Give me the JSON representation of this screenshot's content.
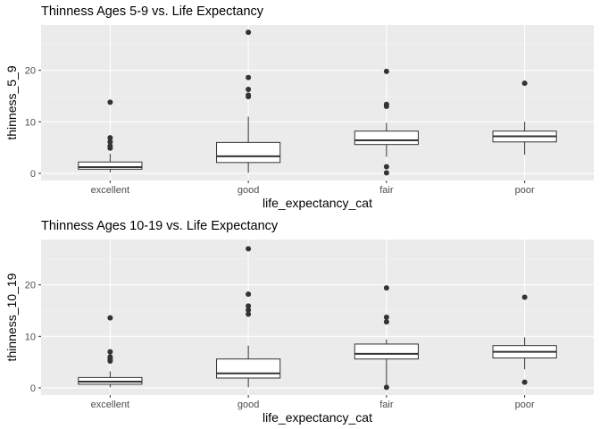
{
  "chart_data": [
    {
      "type": "boxplot",
      "title": "Thinness Ages 5-9 vs. Life Expectancy",
      "xlabel": "life_expectancy_cat",
      "ylabel": "thinness_5_9",
      "categories": [
        "excellent",
        "good",
        "fair",
        "poor"
      ],
      "ylim": [
        -1.4,
        28.8
      ],
      "yticks": [
        0,
        10,
        20
      ],
      "grid": true,
      "boxes": [
        {
          "category": "excellent",
          "whisker_low": 0.2,
          "q1": 0.8,
          "median": 1.2,
          "q3": 2.2,
          "whisker_high": 3.8,
          "outliers": [
            4.9,
            5.3,
            6.1,
            6.9,
            13.8
          ]
        },
        {
          "category": "good",
          "whisker_low": 0.1,
          "q1": 2.1,
          "median": 3.3,
          "q3": 6.0,
          "whisker_high": 11.0,
          "outliers": [
            14.9,
            15.2,
            16.3,
            18.6,
            27.4
          ]
        },
        {
          "category": "fair",
          "whisker_low": 3.2,
          "q1": 5.6,
          "median": 6.4,
          "q3": 8.2,
          "whisker_high": 9.8,
          "outliers": [
            0.1,
            1.3,
            13.0,
            13.4,
            19.8
          ]
        },
        {
          "category": "poor",
          "whisker_low": 3.6,
          "q1": 6.1,
          "median": 7.2,
          "q3": 8.2,
          "whisker_high": 10.0,
          "outliers": [
            17.5
          ]
        }
      ]
    },
    {
      "type": "boxplot",
      "title": "Thinness Ages 10-19 vs. Life Expectancy",
      "xlabel": "life_expectancy_cat",
      "ylabel": "thinness_10_19",
      "categories": [
        "excellent",
        "good",
        "fair",
        "poor"
      ],
      "ylim": [
        -1.4,
        28.8
      ],
      "yticks": [
        0,
        10,
        20
      ],
      "grid": true,
      "boxes": [
        {
          "category": "excellent",
          "whisker_low": 0.1,
          "q1": 0.7,
          "median": 1.2,
          "q3": 2.0,
          "whisker_high": 3.2,
          "outliers": [
            5.2,
            5.6,
            6.0,
            7.0,
            13.6
          ]
        },
        {
          "category": "good",
          "whisker_low": 0.1,
          "q1": 1.9,
          "median": 2.8,
          "q3": 5.6,
          "whisker_high": 8.2,
          "outliers": [
            14.3,
            15.1,
            15.9,
            18.2,
            27.0
          ]
        },
        {
          "category": "fair",
          "whisker_low": 0.1,
          "q1": 5.6,
          "median": 6.6,
          "q3": 8.5,
          "whisker_high": 9.4,
          "outliers": [
            0.1,
            12.8,
            13.7,
            19.4
          ]
        },
        {
          "category": "poor",
          "whisker_low": 3.6,
          "q1": 5.8,
          "median": 7.0,
          "q3": 8.2,
          "whisker_high": 9.8,
          "outliers": [
            1.1,
            17.6
          ]
        }
      ]
    }
  ]
}
